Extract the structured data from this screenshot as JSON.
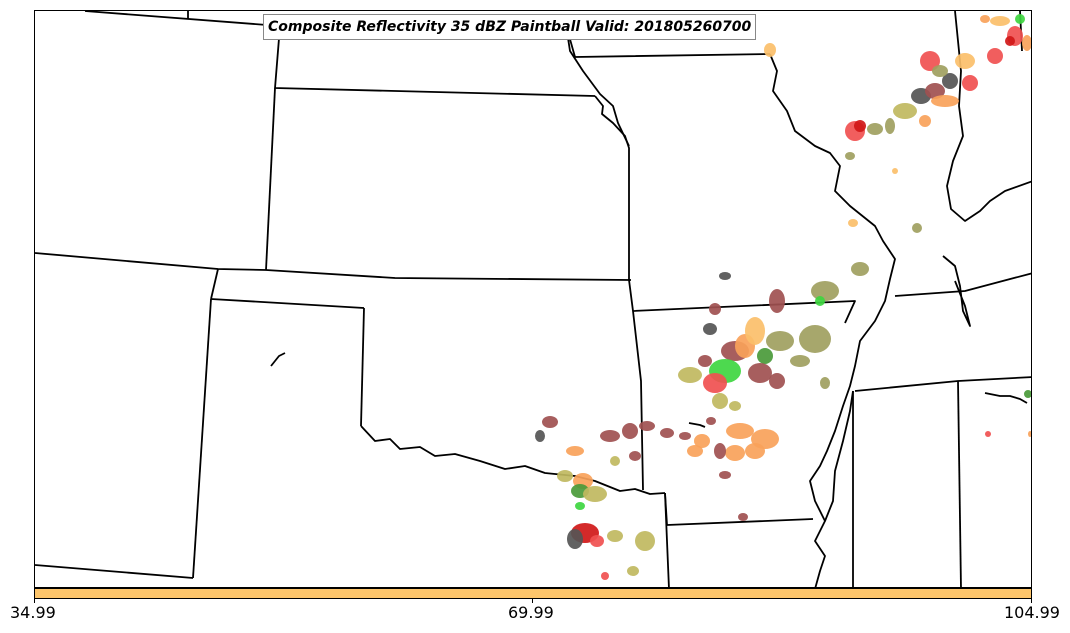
{
  "title": "Composite Reflectivity 35 dBZ Paintball Valid: 201805260700",
  "colorbar": {
    "color": "#fdc56b",
    "min_label": "34.99",
    "mid_label": "69.99",
    "max_label": "104.99"
  },
  "palette": {
    "red": "#f05050",
    "dark_red": "#d01818",
    "orange": "#f9a25a",
    "light_orange": "#fbbf6a",
    "olive": "#a0a060",
    "khaki": "#c0b860",
    "green": "#3ed640",
    "dark_green": "#4a9a3a",
    "gray": "#555555",
    "maroon": "#a05050",
    "border": "#000000"
  }
}
